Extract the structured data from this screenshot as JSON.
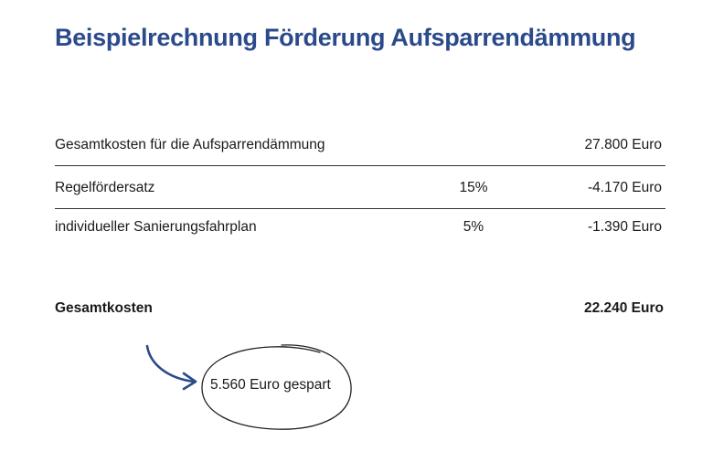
{
  "title": "Beispielrechnung Förderung Aufsparrendämmung",
  "rows": [
    {
      "label": "Gesamtkosten für die Aufsparrendämmung",
      "percent": "",
      "amount": "27.800 Euro"
    },
    {
      "label": "Regelfördersatz",
      "percent": "15%",
      "amount": "-4.170 Euro"
    },
    {
      "label": "individueller Sanierungsfahrplan",
      "percent": "5%",
      "amount": "-1.390 Euro"
    }
  ],
  "total": {
    "label": "Gesamtkosten",
    "amount": "22.240 Euro"
  },
  "savings_note": "5.560 Euro gespart",
  "colors": {
    "title": "#2b4a8b",
    "arrow": "#2b4a8b",
    "text": "#1a1a1a"
  },
  "icons": {
    "arrow": "curved-arrow-icon",
    "circle": "hand-drawn-circle"
  }
}
